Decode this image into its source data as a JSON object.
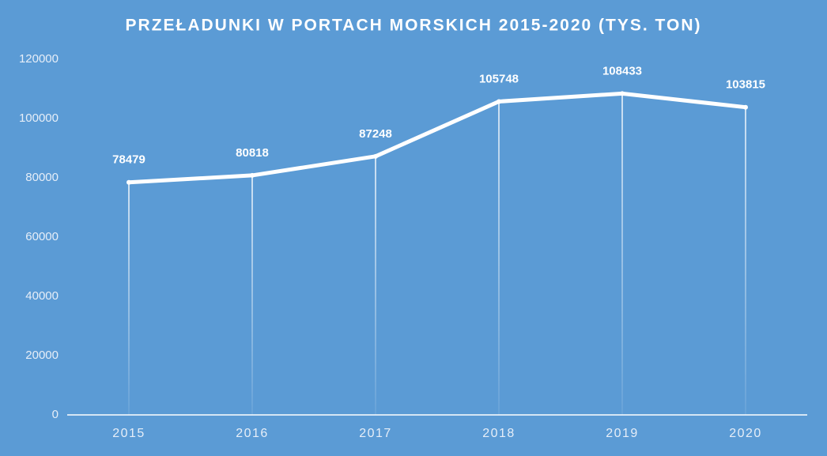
{
  "chart_data": {
    "type": "line",
    "title": "PRZEŁADUNKI W PORTACH MORSKICH 2015-2020 (TYS. TON)",
    "categories": [
      "2015",
      "2016",
      "2017",
      "2018",
      "2019",
      "2020"
    ],
    "values": [
      78479,
      80818,
      87248,
      105748,
      108433,
      103815
    ],
    "color": "#ffffff",
    "ylim": [
      0,
      120000
    ],
    "yticks": [
      0,
      20000,
      40000,
      60000,
      80000,
      100000,
      120000
    ],
    "drop_lines": true,
    "data_labels": true
  }
}
